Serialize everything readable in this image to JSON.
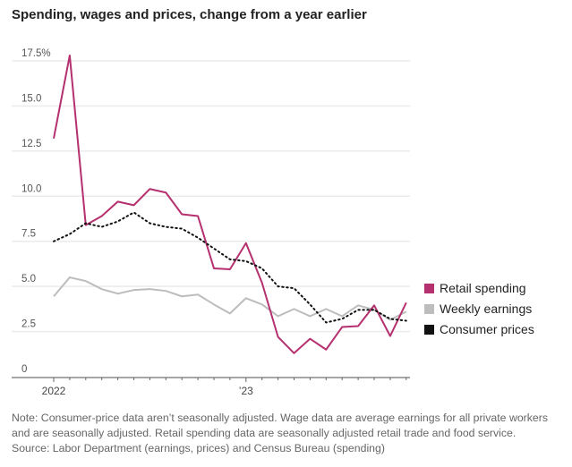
{
  "chart_data": {
    "type": "line",
    "title": "Spending, wages and prices, change from a year earlier",
    "xlabel": "",
    "ylabel": "",
    "ylim": [
      0,
      17.5
    ],
    "y_ticks": [
      "0",
      "2.5",
      "5.0",
      "7.5",
      "10.0",
      "12.5",
      "15.0",
      "17.5%"
    ],
    "y_tick_values": [
      0,
      2.5,
      5,
      7.5,
      10,
      12.5,
      15,
      17.5
    ],
    "x": [
      "2022-01",
      "2022-02",
      "2022-03",
      "2022-04",
      "2022-05",
      "2022-06",
      "2022-07",
      "2022-08",
      "2022-09",
      "2022-10",
      "2022-11",
      "2022-12",
      "2023-01",
      "2023-02",
      "2023-03",
      "2023-04",
      "2023-05",
      "2023-06",
      "2023-07",
      "2023-08",
      "2023-09",
      "2023-10",
      "2023-11"
    ],
    "x_tick_labels": [
      {
        "label": "2022",
        "index": 0
      },
      {
        "label": "’23",
        "index": 12
      }
    ],
    "grid": true,
    "legend_placement": "right",
    "series": [
      {
        "name": "Retail spending",
        "color": "#b5306f",
        "style": "solid",
        "values": [
          13.2,
          17.8,
          8.4,
          8.9,
          9.7,
          9.5,
          10.4,
          10.2,
          9.0,
          8.9,
          6.0,
          5.95,
          7.4,
          5.2,
          2.2,
          1.3,
          2.1,
          1.5,
          2.75,
          2.8,
          3.95,
          2.25,
          4.1
        ]
      },
      {
        "name": "Weekly earnings",
        "color": "#bdbdbd",
        "style": "solid",
        "values": [
          4.45,
          5.5,
          5.3,
          4.85,
          4.6,
          4.8,
          4.85,
          4.75,
          4.45,
          4.55,
          4.0,
          3.5,
          4.35,
          4.0,
          3.35,
          3.75,
          3.35,
          3.75,
          3.35,
          3.95,
          3.7,
          3.15,
          3.6
        ]
      },
      {
        "name": "Consumer prices",
        "color": "#111111",
        "style": "dotted",
        "values": [
          7.5,
          7.9,
          8.5,
          8.3,
          8.6,
          9.1,
          8.5,
          8.3,
          8.2,
          7.7,
          7.1,
          6.5,
          6.4,
          6.0,
          5.0,
          4.9,
          4.0,
          3.0,
          3.2,
          3.7,
          3.7,
          3.2,
          3.1
        ]
      }
    ]
  },
  "notes": [
    "Note: Consumer-price data aren’t seasonally adjusted. Wage data are average earnings for all private workers",
    "and are seasonally adjusted. Retail spending data are seasonally adjusted retail trade and food service.",
    "Source: Labor Department (earnings, prices) and Census Bureau (spending)"
  ]
}
